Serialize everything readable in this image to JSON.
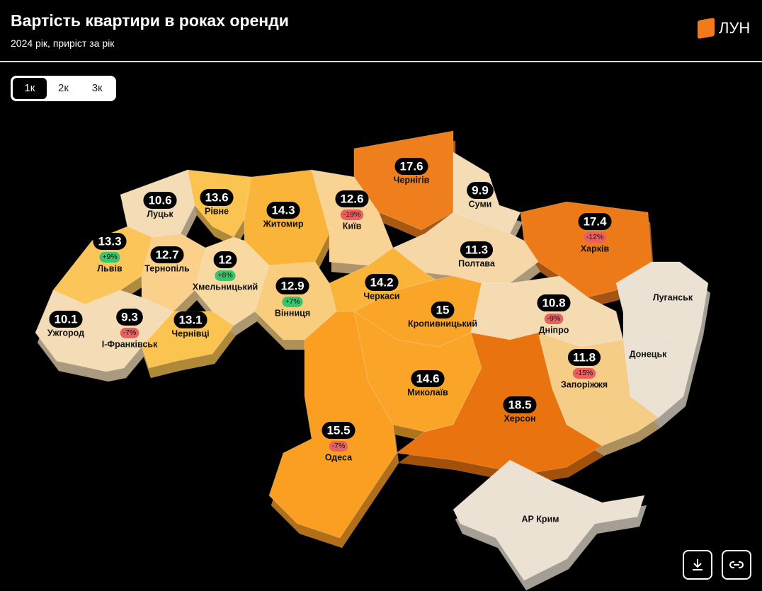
{
  "header": {
    "title": "Вартість квартири в роках оренди",
    "subtitle": "2024 рік, приріст за рік",
    "logo": "ЛУН"
  },
  "tabs": [
    "1к",
    "2к",
    "3к"
  ],
  "regions": [
    {
      "name": "Луцьк",
      "value": 10.6
    },
    {
      "name": "Рівне",
      "value": 13.6
    },
    {
      "name": "Житомир",
      "value": 14.3
    },
    {
      "name": "Київ",
      "value": 12.6,
      "change": "-19%"
    },
    {
      "name": "Чернігів",
      "value": 17.6
    },
    {
      "name": "Суми",
      "value": 9.9
    },
    {
      "name": "Харків",
      "value": 17.4,
      "change": "-12%"
    },
    {
      "name": "Львів",
      "value": 13.3,
      "change": "+9%"
    },
    {
      "name": "Тернопіль",
      "value": 12.7
    },
    {
      "name": "Хмельницький",
      "value": 12,
      "change": "+8%"
    },
    {
      "name": "Вінниця",
      "value": 12.9,
      "change": "+7%"
    },
    {
      "name": "Полтава",
      "value": 11.3
    },
    {
      "name": "Черкаси",
      "value": 14.2
    },
    {
      "name": "Кропивницький",
      "value": 15
    },
    {
      "name": "Дніпро",
      "value": 10.8,
      "change": "-9%"
    },
    {
      "name": "Ужгород",
      "value": 10.1
    },
    {
      "name": "І-Франківськ",
      "value": 9.3,
      "change": "-7%"
    },
    {
      "name": "Чернівці",
      "value": 13.1
    },
    {
      "name": "Запоріжжя",
      "value": 11.8,
      "change": "-15%"
    },
    {
      "name": "Миколаїв",
      "value": 14.6
    },
    {
      "name": "Херсон",
      "value": 18.5
    },
    {
      "name": "Одеса",
      "value": 15.5,
      "change": "-7%"
    },
    {
      "name": "Луганськ"
    },
    {
      "name": "Донецьк"
    },
    {
      "name": "АР Крим"
    }
  ]
}
